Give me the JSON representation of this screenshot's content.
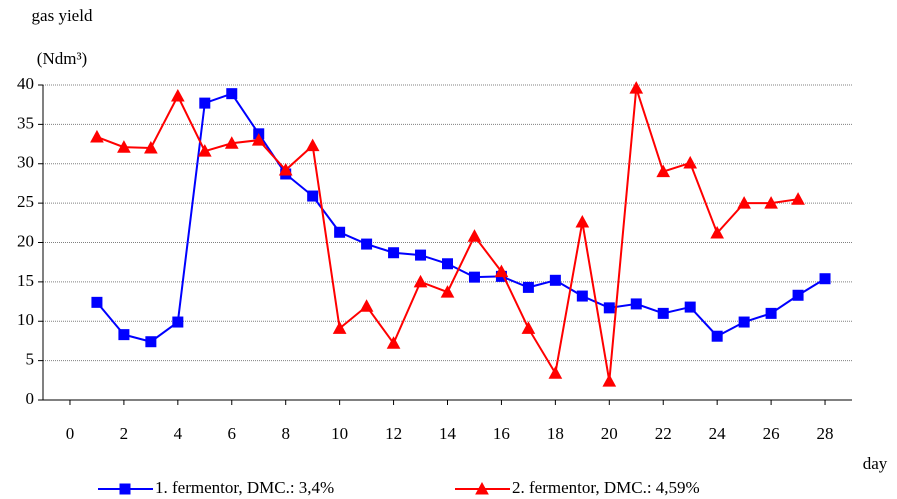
{
  "chart_data": {
    "type": "line",
    "y_label": [
      "gas yield",
      "(Ndm³)"
    ],
    "x_label": "day",
    "x": [
      1,
      2,
      3,
      4,
      5,
      6,
      7,
      8,
      9,
      10,
      11,
      12,
      13,
      14,
      15,
      16,
      17,
      18,
      19,
      20,
      21,
      22,
      23,
      24,
      25,
      26,
      27,
      28
    ],
    "series": [
      {
        "name": "1. fermentor, DMC.: 3,4%",
        "color": "#0000ff",
        "marker": "square",
        "values": [
          12.4,
          8.3,
          7.4,
          9.9,
          37.7,
          38.9,
          33.8,
          28.7,
          25.9,
          21.3,
          19.8,
          18.7,
          18.4,
          17.3,
          15.6,
          15.7,
          14.3,
          15.2,
          13.2,
          11.7,
          12.2,
          11.0,
          11.8,
          8.1,
          9.9,
          11.0,
          13.3,
          15.4
        ]
      },
      {
        "name": "2. fermentor, DMC.: 4,59%",
        "color": "#ff0000",
        "marker": "triangle",
        "values": [
          33.4,
          32.1,
          32.0,
          38.6,
          31.6,
          32.6,
          33.0,
          29.2,
          32.3,
          9.1,
          11.9,
          7.2,
          15.0,
          13.7,
          20.8,
          16.3,
          9.1,
          3.4,
          22.6,
          2.4,
          39.6,
          29.0,
          30.1,
          21.2,
          25.0,
          25.0,
          25.5,
          null
        ]
      }
    ],
    "xlim": [
      -1,
      29
    ],
    "xticks": [
      0,
      2,
      4,
      6,
      8,
      10,
      12,
      14,
      16,
      18,
      20,
      22,
      24,
      26,
      28
    ],
    "ylim": [
      0,
      40
    ],
    "yticks": [
      0,
      5,
      10,
      15,
      20,
      25,
      30,
      35,
      40
    ],
    "grid": true,
    "legend": "bottom"
  }
}
